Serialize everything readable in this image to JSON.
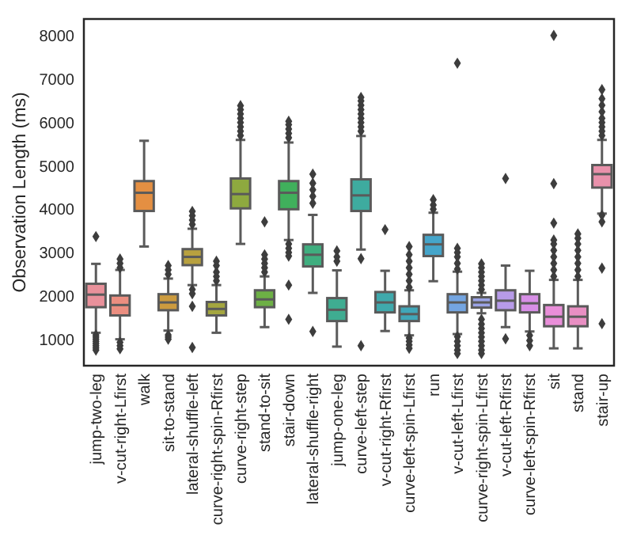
{
  "chart_data": {
    "type": "box",
    "ylabel": "Observation Length (ms)",
    "categories": [
      "jump-two-leg",
      "v-cut-right-Lfirst",
      "walk",
      "sit-to-stand",
      "lateral-shuffle-left",
      "curve-right-spin-Rfirst",
      "curve-right-step",
      "stand-to-sit",
      "stair-down",
      "lateral-shuffle-right",
      "jump-one-leg",
      "curve-left-step",
      "v-cut-right-Rfirst",
      "curve-left-spin-Lfirst",
      "run",
      "v-cut-left-Lfirst",
      "curve-right-spin-Lfirst",
      "v-cut-left-Rfirst",
      "curve-left-spin-Rfirst",
      "sit",
      "stand",
      "stair-up"
    ],
    "colors": [
      "#e9919b",
      "#eb8e80",
      "#e48f42",
      "#cc9b3f",
      "#b8a13f",
      "#a4a63f",
      "#8ea93f",
      "#6db045",
      "#40b05c",
      "#3fae7f",
      "#3fac91",
      "#3eab9f",
      "#3fa9ac",
      "#40a7b9",
      "#45a5ca",
      "#74a5e1",
      "#9ba3e6",
      "#b79be8",
      "#d78fe6",
      "#e98ed9",
      "#e98fc3",
      "#e991ab"
    ],
    "boxes": [
      {
        "low": 1150,
        "q1": 1740,
        "median": 2030,
        "q3": 2280,
        "high": 2740,
        "outliers": [
          3370,
          1100,
          1050,
          1000,
          950,
          900,
          850,
          800,
          750
        ]
      },
      {
        "low": 1000,
        "q1": 1550,
        "median": 1790,
        "q3": 2010,
        "high": 2600,
        "outliers": [
          2650,
          2750,
          2850,
          930,
          850,
          780
        ]
      },
      {
        "low": 3140,
        "q1": 3960,
        "median": 4380,
        "q3": 4650,
        "high": 5580
      },
      {
        "low": 1200,
        "q1": 1670,
        "median": 1850,
        "q3": 2040,
        "high": 2400,
        "outliers": [
          2500,
          2600,
          2700,
          1100,
          1050,
          1000
        ]
      },
      {
        "low": 2250,
        "q1": 2710,
        "median": 2900,
        "q3": 3080,
        "high": 3550,
        "outliers": [
          3650,
          3750,
          3850,
          3950,
          2150,
          2050,
          1760,
          810
        ]
      },
      {
        "low": 1150,
        "q1": 1550,
        "median": 1700,
        "q3": 1860,
        "high": 2250,
        "outliers": [
          2350,
          2450,
          2550,
          2700,
          2800
        ]
      },
      {
        "low": 3200,
        "q1": 4020,
        "median": 4350,
        "q3": 4710,
        "high": 5600,
        "outliers": [
          5700,
          5800,
          5900,
          6000,
          6100,
          6200,
          6300,
          6390
        ]
      },
      {
        "low": 1280,
        "q1": 1740,
        "median": 1920,
        "q3": 2130,
        "high": 2450,
        "outliers": [
          2550,
          2650,
          2750,
          2850,
          2950,
          3710
        ]
      },
      {
        "low": 3290,
        "q1": 4000,
        "median": 4380,
        "q3": 4650,
        "high": 5540,
        "outliers": [
          5650,
          5750,
          5850,
          5950,
          6030,
          3200,
          3100,
          3000,
          2920,
          2250,
          1460
        ]
      },
      {
        "low": 2070,
        "q1": 2680,
        "median": 2950,
        "q3": 3190,
        "high": 3870,
        "outliers": [
          4140,
          4300,
          4450,
          4600,
          4810,
          1180
        ]
      },
      {
        "low": 830,
        "q1": 1420,
        "median": 1680,
        "q3": 1950,
        "high": 2590,
        "outliers": [
          2800,
          2900,
          3040
        ]
      },
      {
        "low": 3070,
        "q1": 3960,
        "median": 4320,
        "q3": 4690,
        "high": 5690,
        "outliers": [
          5800,
          5900,
          6000,
          6100,
          6200,
          6300,
          6400,
          6500,
          6580,
          2860,
          850
        ]
      },
      {
        "low": 1190,
        "q1": 1620,
        "median": 1850,
        "q3": 2090,
        "high": 2580,
        "outliers": [
          3530
        ]
      },
      {
        "low": 1090,
        "q1": 1420,
        "median": 1580,
        "q3": 1760,
        "high": 2130,
        "outliers": [
          2200,
          2350,
          2500,
          2650,
          2800,
          2950,
          3140,
          1030,
          950,
          870,
          790
        ]
      },
      {
        "low": 2340,
        "q1": 2920,
        "median": 3190,
        "q3": 3410,
        "high": 3920,
        "outliers": [
          4000,
          4100,
          4220
        ]
      },
      {
        "low": 1120,
        "q1": 1620,
        "median": 1850,
        "q3": 2040,
        "high": 2560,
        "outliers": [
          2620,
          2750,
          2900,
          3000,
          3100,
          7370,
          1060,
          950,
          850,
          750,
          670
        ]
      },
      {
        "low": 1600,
        "q1": 1730,
        "median": 1850,
        "q3": 1970,
        "high": 2070,
        "outliers": [
          2150,
          2250,
          2350,
          2450,
          2550,
          2650,
          2740,
          1460,
          1350,
          1250,
          1150,
          1050,
          950,
          850,
          750,
          670
        ]
      },
      {
        "low": 1280,
        "q1": 1670,
        "median": 1890,
        "q3": 2130,
        "high": 2700,
        "outliers": [
          4710,
          1010
        ]
      },
      {
        "low": 1180,
        "q1": 1620,
        "median": 1830,
        "q3": 2040,
        "high": 2580,
        "outliers": [
          1090,
          970,
          850
        ]
      },
      {
        "low": 790,
        "q1": 1300,
        "median": 1520,
        "q3": 1790,
        "high": 2370,
        "outliers": [
          2450,
          2600,
          2750,
          2900,
          3050,
          3200,
          3290,
          3680,
          4590,
          8010
        ]
      },
      {
        "low": 790,
        "q1": 1300,
        "median": 1520,
        "q3": 1760,
        "high": 2370,
        "outliers": [
          2450,
          2600,
          2750,
          2900,
          3050,
          3200,
          3330,
          3430
        ]
      },
      {
        "low": 3900,
        "q1": 4500,
        "median": 4810,
        "q3": 5020,
        "high": 5600,
        "outliers": [
          5700,
          5800,
          5900,
          6000,
          6100,
          6250,
          6400,
          6550,
          6760,
          3860,
          3710,
          2640,
          1360
        ]
      }
    ],
    "ylim": [
      390,
      8390
    ],
    "yticks": [
      1000,
      2000,
      3000,
      4000,
      5000,
      6000,
      7000,
      8000
    ],
    "marker": "diamond"
  }
}
